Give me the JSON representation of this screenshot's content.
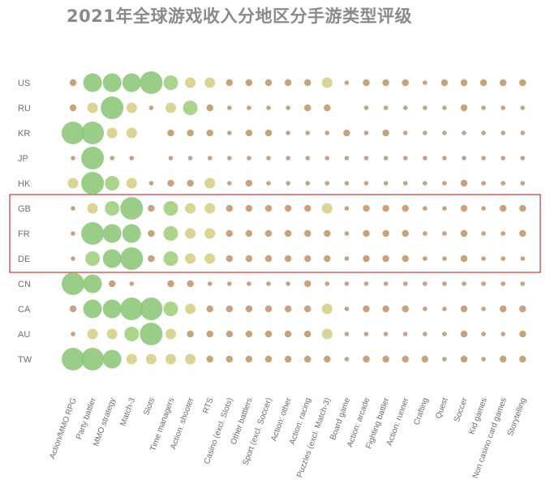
{
  "chart_data": {
    "type": "bubble-matrix",
    "title": "2021年全球游戏收入分地区分手游类型评级",
    "rows": [
      "US",
      "RU",
      "KR",
      "JP",
      "HK",
      "GB",
      "FR",
      "DE",
      "CN",
      "CA",
      "AU",
      "TW"
    ],
    "columns": [
      "Action/MMO RPG",
      "Party battler",
      "MMO strategy",
      "Match-3",
      "Slots",
      "Time managers",
      "Action: shooter",
      "RTS",
      "Casino (excl. Slots)",
      "Other battlers",
      "Sport (excl. Soccer)",
      "Action: other",
      "Action: racing",
      "Puzzles (excl. Match-3)",
      "Board game",
      "Action: arcade",
      "Fighting battler",
      "Action: runner",
      "Crafting",
      "Quest",
      "Soccer",
      "Kid games",
      "Non casino card games",
      "Storytelling"
    ],
    "rating_scale": {
      "min": 0,
      "max": 6
    },
    "values": [
      [
        2,
        5,
        5,
        5,
        6,
        4,
        3,
        3,
        2,
        2,
        2,
        2,
        2,
        3,
        1,
        2,
        2,
        2,
        1,
        2,
        2,
        2,
        2,
        2
      ],
      [
        2,
        3,
        6,
        3,
        1,
        3,
        4,
        2,
        1,
        1,
        1,
        1,
        2,
        2,
        0,
        1,
        1,
        1,
        1,
        1,
        2,
        1,
        1,
        1
      ],
      [
        6,
        6,
        3,
        3,
        0,
        2,
        2,
        2,
        1,
        2,
        2,
        1,
        1,
        1,
        2,
        1,
        2,
        1,
        1,
        1,
        1,
        1,
        1,
        1
      ],
      [
        1,
        6,
        1,
        1,
        0,
        1,
        1,
        1,
        1,
        1,
        1,
        1,
        1,
        1,
        1,
        1,
        1,
        1,
        1,
        1,
        1,
        1,
        1,
        1
      ],
      [
        3,
        6,
        4,
        3,
        1,
        2,
        2,
        3,
        1,
        2,
        1,
        1,
        1,
        1,
        1,
        1,
        1,
        1,
        1,
        1,
        2,
        1,
        1,
        1
      ],
      [
        1,
        3,
        4,
        6,
        2,
        4,
        3,
        3,
        2,
        2,
        2,
        2,
        2,
        3,
        1,
        2,
        2,
        2,
        1,
        1,
        2,
        1,
        2,
        2
      ],
      [
        1,
        6,
        5,
        5,
        2,
        4,
        3,
        3,
        2,
        2,
        2,
        2,
        2,
        2,
        1,
        2,
        2,
        2,
        1,
        1,
        2,
        1,
        1,
        2
      ],
      [
        1,
        4,
        5,
        6,
        2,
        4,
        3,
        3,
        2,
        2,
        2,
        2,
        2,
        2,
        1,
        2,
        2,
        2,
        1,
        1,
        2,
        1,
        1,
        1
      ],
      [
        6,
        5,
        2,
        1,
        0,
        2,
        2,
        1,
        1,
        1,
        1,
        1,
        2,
        1,
        1,
        1,
        1,
        1,
        1,
        1,
        1,
        1,
        1,
        1
      ],
      [
        2,
        5,
        5,
        6,
        6,
        4,
        3,
        2,
        2,
        2,
        2,
        2,
        2,
        3,
        1,
        2,
        2,
        2,
        1,
        1,
        2,
        1,
        2,
        2
      ],
      [
        1,
        3,
        3,
        4,
        6,
        3,
        2,
        2,
        2,
        2,
        2,
        2,
        2,
        3,
        1,
        1,
        1,
        1,
        1,
        1,
        2,
        1,
        1,
        2
      ],
      [
        6,
        6,
        5,
        3,
        3,
        3,
        3,
        2,
        2,
        2,
        2,
        2,
        2,
        2,
        1,
        2,
        2,
        2,
        2,
        1,
        2,
        1,
        2,
        2
      ]
    ],
    "colors": {
      "low": "#c9a17a",
      "mid": "#d6cf8a",
      "high": "#a3cf7f",
      "top": "#8fc87b",
      "highlight_box": "#c0393b",
      "label": "#6f6f6f"
    },
    "highlighted_rows": [
      "GB",
      "FR",
      "DE"
    ],
    "grid": false
  }
}
